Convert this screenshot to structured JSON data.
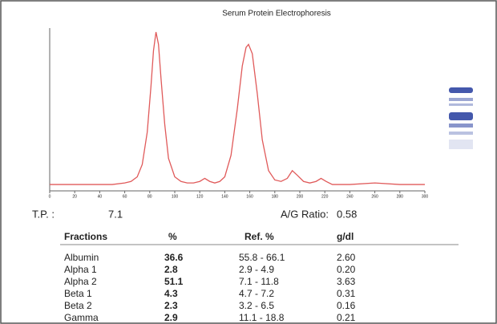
{
  "chart_data": {
    "type": "line",
    "title": "Serum Protein Electrophoresis",
    "x": [
      0,
      20,
      40,
      50,
      60,
      65,
      70,
      74,
      78,
      81,
      83,
      85,
      87,
      89,
      92,
      95,
      100,
      105,
      110,
      115,
      120,
      124,
      128,
      132,
      136,
      140,
      145,
      150,
      154,
      157,
      159,
      162,
      166,
      170,
      175,
      180,
      185,
      190,
      194,
      198,
      203,
      208,
      213,
      217,
      221,
      226,
      240,
      260,
      280,
      300
    ],
    "values": [
      1,
      1,
      1,
      1,
      2,
      3,
      6,
      14,
      35,
      65,
      88,
      100,
      92,
      70,
      40,
      18,
      6,
      3,
      2,
      2,
      3,
      5,
      3,
      2,
      3,
      6,
      20,
      50,
      78,
      90,
      92,
      86,
      60,
      30,
      10,
      4,
      3,
      5,
      10,
      7,
      3,
      2,
      3,
      5,
      3,
      1,
      1,
      2,
      1,
      1
    ],
    "color": "#e05a5a",
    "xlim": [
      0,
      300
    ],
    "xticks": [
      0,
      20,
      40,
      60,
      80,
      100,
      120,
      140,
      160,
      180,
      200,
      220,
      240,
      260,
      280,
      300
    ],
    "ylim": [
      0,
      100
    ]
  },
  "report": {
    "tp_label": "T.P. :",
    "tp_value": "7.1",
    "ag_label": "A/G Ratio:",
    "ag_value": "0.58",
    "table": {
      "header": [
        "Fractions",
        "%",
        "Ref. %",
        "g/dl"
      ],
      "rows": [
        [
          "Albumin",
          "36.6",
          "55.8 - 66.1",
          "2.60"
        ],
        [
          "Alpha 1",
          "2.8",
          "2.9 - 4.9",
          "0.20"
        ],
        [
          "Alpha 2",
          "51.1",
          "7.1 - 11.8",
          "3.63"
        ],
        [
          "Beta 1",
          "4.3",
          "4.7 - 7.2",
          "0.31"
        ],
        [
          "Beta 2",
          "2.3",
          "3.2 - 6.5",
          "0.16"
        ],
        [
          "Gamma",
          "2.9",
          "11.1 - 18.8",
          "0.21"
        ]
      ]
    }
  }
}
